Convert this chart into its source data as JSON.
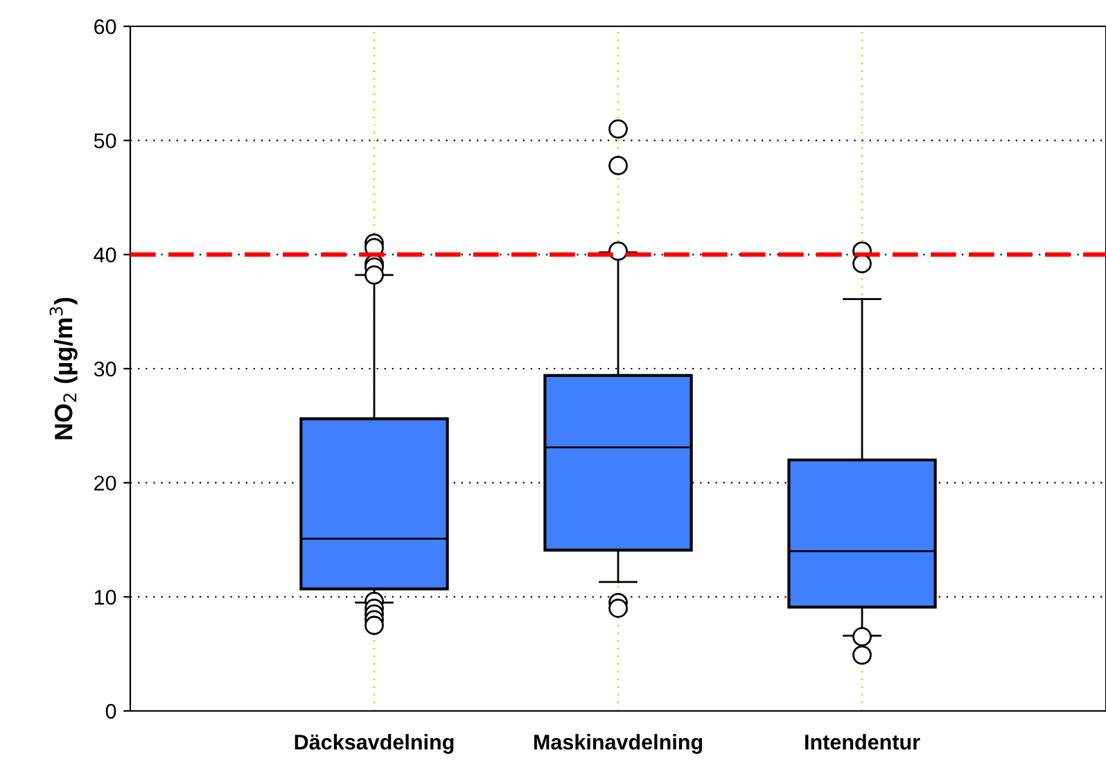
{
  "chart_data": {
    "type": "box",
    "ylabel": "NO$_{2}$ (µg/m$^{3}$)",
    "categories": [
      "Däcksavdelning",
      "Maskinavdelning",
      "Intendentur"
    ],
    "boxes": [
      {
        "low": 9.5,
        "q1": 10.7,
        "median": 15.1,
        "q3": 25.6,
        "high": 38.2,
        "outliers": [
          41.0,
          40.6,
          39.2,
          38.9,
          38.2,
          9.6,
          9.0,
          8.5,
          8.0,
          7.5
        ]
      },
      {
        "low": 11.3,
        "q1": 14.1,
        "median": 23.1,
        "q3": 29.4,
        "high": 40.2,
        "outliers": [
          51.0,
          47.8,
          40.3,
          9.5,
          9.0
        ]
      },
      {
        "low": 6.6,
        "q1": 9.1,
        "median": 14.0,
        "q3": 22.0,
        "high": 36.1,
        "outliers": [
          40.3,
          39.2,
          6.5,
          4.9
        ]
      }
    ],
    "color": "#4080ff",
    "ylim": [
      0,
      60
    ],
    "yticks": [
      0,
      10,
      20,
      30,
      40,
      50,
      60
    ],
    "grid": true,
    "ref_lines": [
      {
        "axis": "y",
        "value": 40,
        "color": "#ff0000",
        "line_style": "dashed"
      }
    ]
  }
}
